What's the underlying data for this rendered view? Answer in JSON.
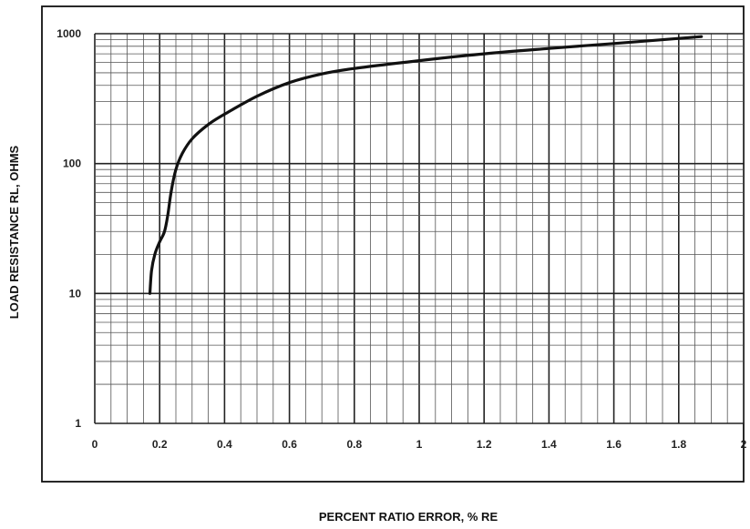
{
  "chart_data": {
    "type": "line",
    "title": "",
    "xlabel": "PERCENT RATIO ERROR, % RE",
    "ylabel": "LOAD RESISTANCE RL, OHMS",
    "xlim": [
      0,
      2
    ],
    "ylim": [
      1,
      1000
    ],
    "yscale": "log",
    "grid": true,
    "legend": "none",
    "x_ticks": [
      0,
      0.2,
      0.4,
      0.6,
      0.8,
      1.0,
      1.2,
      1.4,
      1.6,
      1.8,
      2.0
    ],
    "x_tick_labels": [
      "0",
      "0.2",
      "0.4",
      "0.6",
      "0.8",
      "1",
      "1.2",
      "1.4",
      "1.6",
      "1.8",
      "2"
    ],
    "y_ticks": [
      1,
      10,
      100,
      1000
    ],
    "y_tick_labels": [
      "1",
      "10",
      "100",
      "1000"
    ],
    "series": [
      {
        "x": [
          0.17,
          0.175,
          0.185,
          0.2,
          0.215,
          0.225,
          0.235,
          0.25,
          0.27,
          0.3,
          0.35,
          0.4,
          0.5,
          0.6,
          0.7,
          0.8,
          1.0,
          1.2,
          1.4,
          1.6,
          1.8,
          1.87
        ],
        "y": [
          10,
          15,
          20,
          25,
          30,
          40,
          60,
          90,
          120,
          155,
          200,
          240,
          330,
          420,
          490,
          540,
          620,
          700,
          770,
          840,
          920,
          950
        ],
        "color": "#111111"
      }
    ]
  }
}
